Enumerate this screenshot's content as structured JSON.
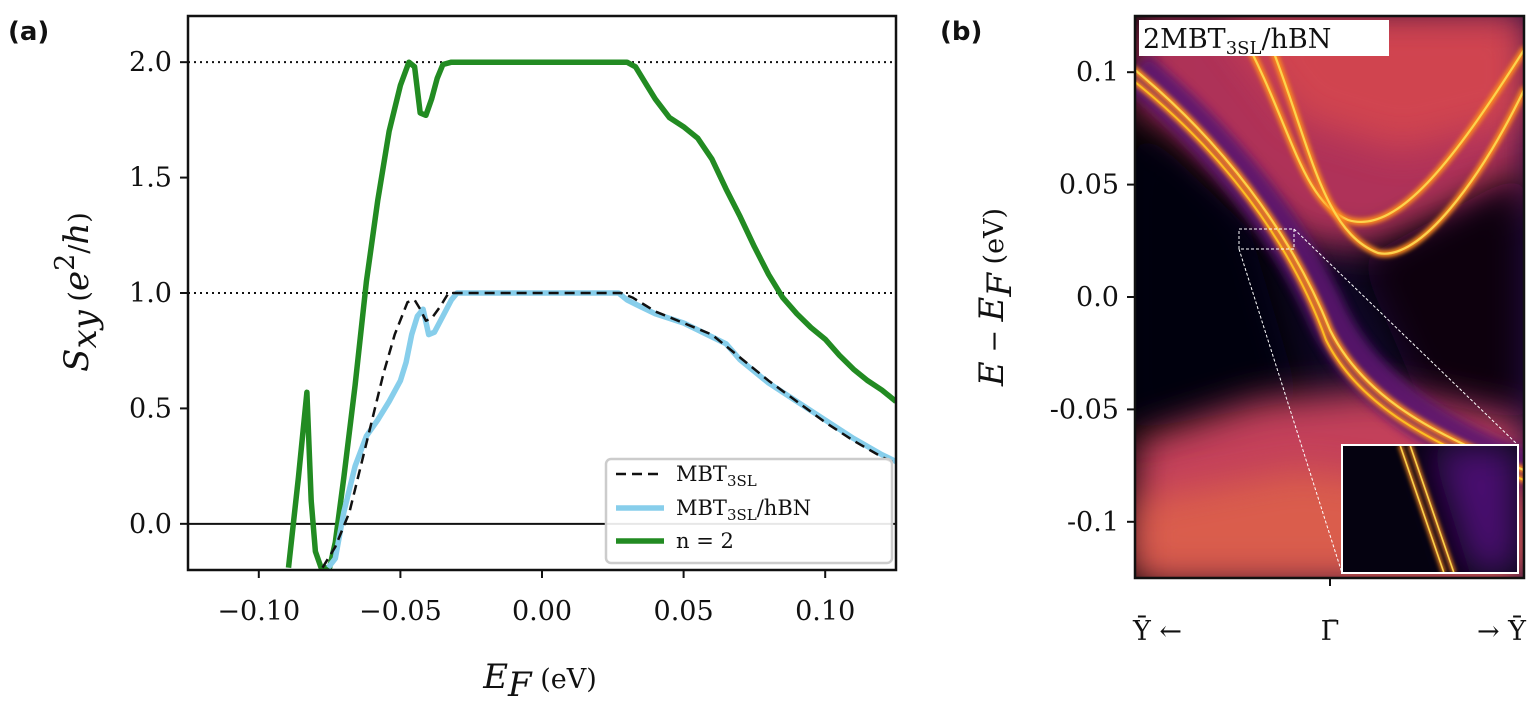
{
  "chart_data": [
    {
      "type": "line",
      "panel_label": "(a)",
      "xlabel": "E_F (eV)",
      "ylabel": "S_xy (e^2/h)",
      "xlim": [
        -0.125,
        0.125
      ],
      "ylim": [
        -0.2,
        2.2
      ],
      "xticks": [
        -0.1,
        -0.05,
        0.0,
        0.05,
        0.1
      ],
      "xtick_labels": [
        "−0.10",
        "−0.05",
        "0.00",
        "0.05",
        "0.10"
      ],
      "yticks": [
        0.0,
        0.5,
        1.0,
        1.5,
        2.0
      ],
      "ytick_labels": [
        "0.0",
        "0.5",
        "1.0",
        "1.5",
        "2.0"
      ],
      "reference_lines": [
        1.0,
        2.0
      ],
      "zero_line": 0.0,
      "legend_position": "lower-right",
      "series": [
        {
          "name": "MBT3SL",
          "name_main": "MBT",
          "name_sub": "3SL",
          "color": "#111111",
          "style": "dashed",
          "x": [
            -0.0775,
            -0.073,
            -0.068,
            -0.064,
            -0.06,
            -0.056,
            -0.052,
            -0.0475,
            -0.045,
            -0.043,
            -0.041,
            -0.039,
            -0.036,
            -0.033,
            -0.03,
            -0.02,
            -0.01,
            0.0,
            0.01,
            0.02,
            0.028,
            0.032,
            0.036,
            0.04,
            0.05,
            0.06,
            0.07,
            0.08,
            0.09,
            0.1,
            0.11,
            0.12,
            0.125
          ],
          "y": [
            -0.19,
            -0.1,
            0.05,
            0.25,
            0.45,
            0.65,
            0.82,
            0.96,
            0.97,
            0.93,
            0.88,
            0.89,
            0.94,
            1.0,
            1.0,
            1.0,
            1.0,
            1.0,
            1.0,
            1.0,
            1.0,
            0.98,
            0.95,
            0.92,
            0.87,
            0.82,
            0.72,
            0.62,
            0.53,
            0.44,
            0.36,
            0.29,
            0.26
          ]
        },
        {
          "name": "MBT3SL/hBN",
          "name_main": "MBT",
          "name_sub": "3SL",
          "name_suffix": "/hBN",
          "color": "#87ceeb",
          "style": "solid",
          "x": [
            -0.0755,
            -0.073,
            -0.07,
            -0.066,
            -0.062,
            -0.058,
            -0.054,
            -0.05,
            -0.048,
            -0.046,
            -0.044,
            -0.042,
            -0.04,
            -0.038,
            -0.035,
            -0.032,
            -0.03,
            -0.02,
            -0.01,
            0.0,
            0.01,
            0.02,
            0.027,
            0.03,
            0.035,
            0.04,
            0.05,
            0.06,
            0.065,
            0.07,
            0.08,
            0.09,
            0.1,
            0.11,
            0.12,
            0.125
          ],
          "y": [
            -0.19,
            -0.15,
            0.05,
            0.25,
            0.38,
            0.45,
            0.53,
            0.62,
            0.7,
            0.82,
            0.9,
            0.93,
            0.82,
            0.83,
            0.9,
            0.97,
            1.0,
            1.0,
            1.0,
            1.0,
            1.0,
            1.0,
            1.0,
            0.97,
            0.94,
            0.91,
            0.87,
            0.81,
            0.78,
            0.71,
            0.61,
            0.53,
            0.45,
            0.37,
            0.3,
            0.27
          ]
        },
        {
          "name": "n = 2",
          "color": "#228b22",
          "style": "solid",
          "x": [
            -0.0895,
            -0.086,
            -0.083,
            -0.0815,
            -0.08,
            -0.078,
            -0.075,
            -0.073,
            -0.07,
            -0.066,
            -0.062,
            -0.058,
            -0.054,
            -0.05,
            -0.047,
            -0.045,
            -0.043,
            -0.041,
            -0.039,
            -0.037,
            -0.035,
            -0.032,
            -0.03,
            -0.02,
            -0.01,
            0.0,
            0.01,
            0.02,
            0.03,
            0.033,
            0.037,
            0.04,
            0.045,
            0.05,
            0.055,
            0.06,
            0.065,
            0.07,
            0.075,
            0.08,
            0.085,
            0.09,
            0.095,
            0.1,
            0.105,
            0.11,
            0.115,
            0.12,
            0.125
          ],
          "y": [
            -0.19,
            0.2,
            0.57,
            0.1,
            -0.12,
            -0.19,
            -0.19,
            -0.08,
            0.2,
            0.6,
            1.05,
            1.4,
            1.7,
            1.9,
            2.0,
            1.98,
            1.78,
            1.77,
            1.84,
            1.93,
            1.99,
            2.0,
            2.0,
            2.0,
            2.0,
            2.0,
            2.0,
            2.0,
            2.0,
            1.98,
            1.9,
            1.84,
            1.76,
            1.72,
            1.67,
            1.58,
            1.45,
            1.33,
            1.2,
            1.08,
            0.98,
            0.91,
            0.85,
            0.8,
            0.73,
            0.67,
            0.62,
            0.58,
            0.53
          ]
        }
      ]
    },
    {
      "type": "heatmap",
      "panel_label": "(b)",
      "annotation": "2MBT3SL/hBN",
      "annotation_main": "2MBT",
      "annotation_sub": "3SL",
      "annotation_suffix": "/hBN",
      "ylabel": "E − E_F (eV)",
      "ylim": [
        -0.125,
        0.125
      ],
      "yticks": [
        0.1,
        0.05,
        0.0,
        -0.05,
        -0.1
      ],
      "ytick_labels": [
        "0.1",
        "0.05",
        "0.0",
        "-0.05",
        "-0.1"
      ],
      "xtick_labels": [
        "Ȳ ←",
        "Γ̄",
        "→ Ȳ"
      ],
      "colormap": "inferno",
      "has_inset_zoom": true
    }
  ]
}
